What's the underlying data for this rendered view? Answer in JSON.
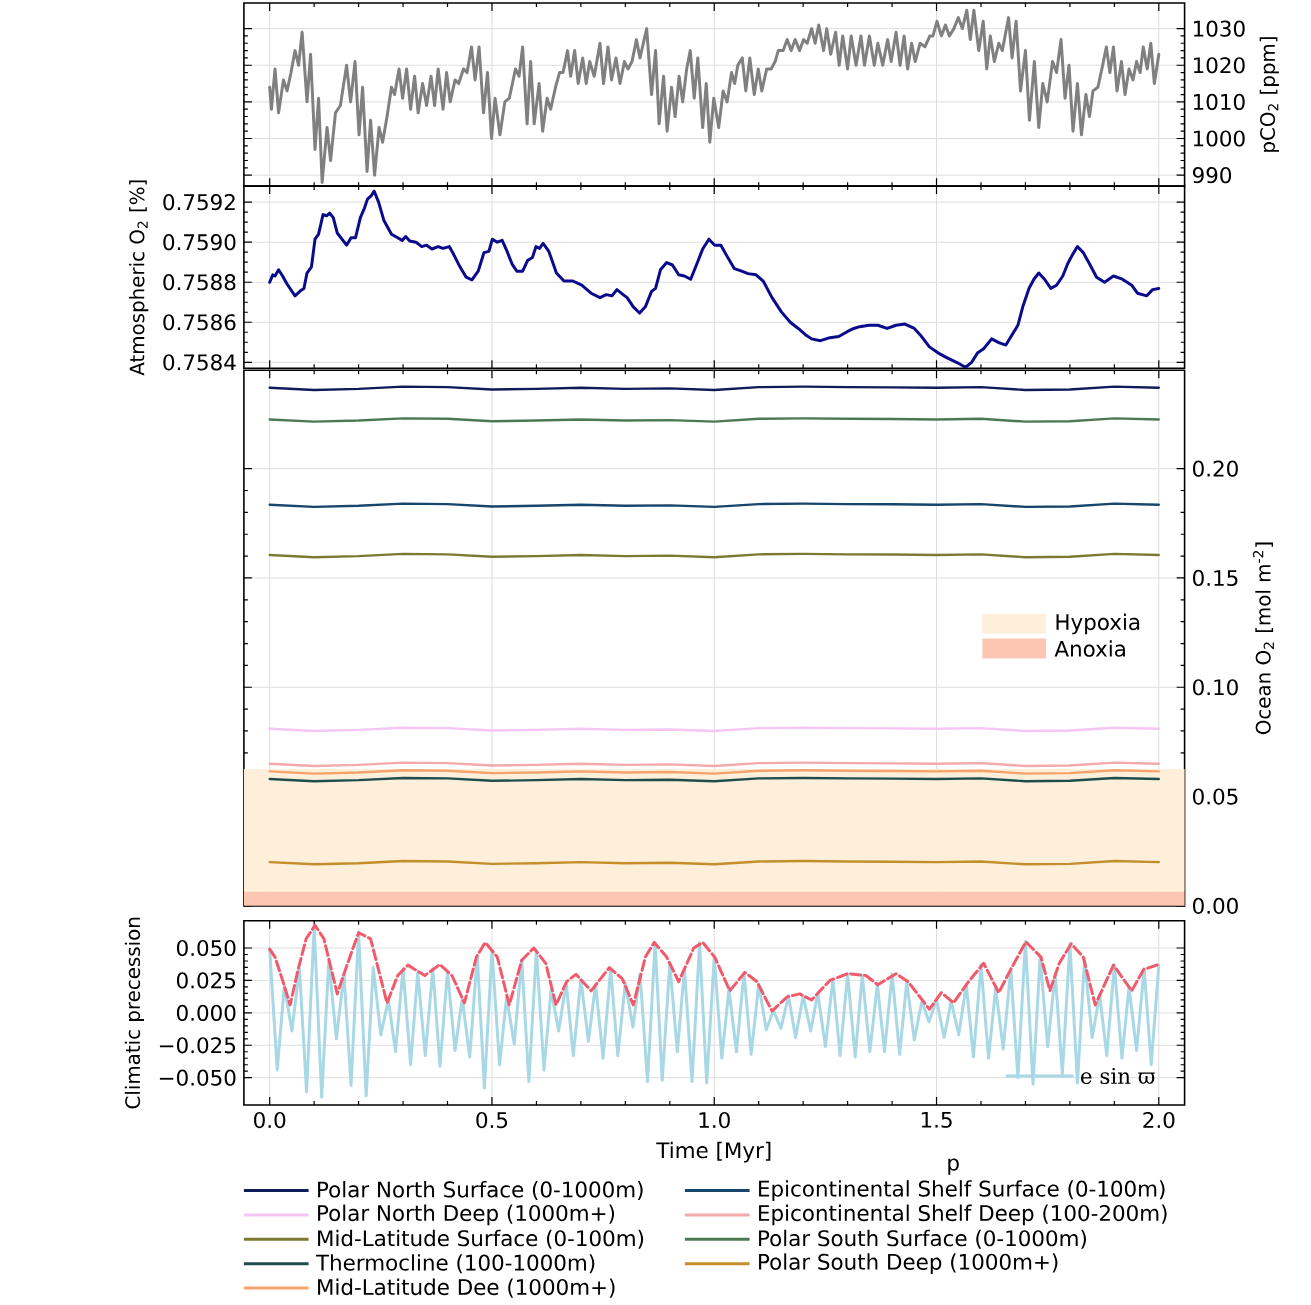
{
  "chart_data": [
    {
      "type": "line",
      "ylabel": "pCO$_{2}$ [ppm]",
      "xlim": [
        -0.058,
        2.058
      ],
      "ylim": [
        987,
        1037
      ],
      "grid": true,
      "tick_labels": "y",
      "xticks": [
        {
          "value": 0,
          "label": null
        },
        {
          "value": 0.5,
          "label": null
        },
        {
          "value": 1,
          "label": null
        },
        {
          "value": 1.5,
          "label": null
        },
        {
          "value": 2,
          "label": null
        }
      ],
      "yticks": [
        990,
        1000,
        1010,
        1020,
        1030
      ],
      "color": "#808080",
      "x": [
        0,
        0.004,
        0.012,
        0.02,
        0.031,
        0.039,
        0.048,
        0.057,
        0.065,
        0.073,
        0.084,
        0.092,
        0.102,
        0.11,
        0.118,
        0.129,
        0.137,
        0.148,
        0.159,
        0.173,
        0.182,
        0.192,
        0.201,
        0.209,
        0.219,
        0.227,
        0.236,
        0.246,
        0.254,
        0.264,
        0.274,
        0.281,
        0.291,
        0.299,
        0.308,
        0.317,
        0.326,
        0.334,
        0.344,
        0.353,
        0.363,
        0.371,
        0.379,
        0.39,
        0.398,
        0.406,
        0.417,
        0.425,
        0.436,
        0.444,
        0.454,
        0.462,
        0.471,
        0.481,
        0.49,
        0.499,
        0.507,
        0.518,
        0.529,
        0.539,
        0.553,
        0.561,
        0.569,
        0.579,
        0.587,
        0.595,
        0.606,
        0.614,
        0.624,
        0.632,
        0.643,
        0.652,
        0.66,
        0.67,
        0.677,
        0.686,
        0.694,
        0.704,
        0.712,
        0.72,
        0.73,
        0.743,
        0.751,
        0.761,
        0.769,
        0.779,
        0.788,
        0.798,
        0.806,
        0.815,
        0.825,
        0.833,
        0.848,
        0.859,
        0.868,
        0.876,
        0.886,
        0.894,
        0.904,
        0.912,
        0.921,
        0.929,
        0.938,
        0.946,
        0.955,
        0.963,
        0.974,
        0.982,
        0.99,
        0.999,
        1.01,
        1.02,
        1.029,
        1.039,
        1.046,
        1.053,
        1.063,
        1.071,
        1.08,
        1.09,
        1.099,
        1.107,
        1.118,
        1.128,
        1.137,
        1.144,
        1.155,
        1.164,
        1.173,
        1.182,
        1.192,
        1.201,
        1.209,
        1.219,
        1.227,
        1.235,
        1.246,
        1.253,
        1.262,
        1.273,
        1.281,
        1.289,
        1.3,
        1.308,
        1.319,
        1.33,
        1.338,
        1.349,
        1.36,
        1.368,
        1.379,
        1.39,
        1.398,
        1.409,
        1.418,
        1.427,
        1.435,
        1.444,
        1.452,
        1.463,
        1.474,
        1.485,
        1.492,
        1.501,
        1.511,
        1.52,
        1.529,
        1.539,
        1.549,
        1.558,
        1.568,
        1.576,
        1.584,
        1.595,
        1.605,
        1.613,
        1.621,
        1.63,
        1.64,
        1.648,
        1.662,
        1.67,
        1.679,
        1.689,
        1.7,
        1.709,
        1.72,
        1.73,
        1.739,
        1.749,
        1.761,
        1.77,
        1.78,
        1.789,
        1.798,
        1.807,
        1.817,
        1.826,
        1.836,
        1.844,
        1.852,
        1.863,
        1.872,
        1.882,
        1.89,
        1.898,
        1.906,
        1.916,
        1.924,
        1.933,
        1.942,
        1.95,
        1.958,
        1.965,
        1.974,
        1.982,
        1.99,
        2.0
      ],
      "values": [
        1014,
        1008,
        1019,
        1007,
        1016,
        1013,
        1018,
        1024,
        1020,
        1029,
        1010,
        1023,
        997,
        1011,
        988,
        1003,
        994,
        1007,
        1009,
        1020,
        1010,
        1021,
        1001,
        1014,
        991,
        1005,
        990,
        1003,
        999,
        1006,
        1014,
        1012,
        1019,
        1011,
        1019,
        1008,
        1017,
        1007,
        1015,
        1009,
        1017,
        1009,
        1019,
        1008,
        1018,
        1010,
        1016,
        1015,
        1019,
        1018,
        1025,
        1016,
        1025,
        1007,
        1018,
        1000,
        1011,
        1001,
        1010,
        1011,
        1019,
        1017,
        1025,
        1004,
        1021,
        1004,
        1015,
        1002,
        1011,
        1008,
        1014,
        1018,
        1018,
        1024,
        1017,
        1024,
        1015,
        1022,
        1015,
        1021,
        1017,
        1026,
        1015,
        1025,
        1016,
        1022,
        1015,
        1021,
        1019,
        1021,
        1027,
        1022,
        1030,
        1012,
        1024,
        1004,
        1017,
        1002,
        1014,
        1006,
        1017,
        1010,
        1019,
        1024,
        1011,
        1022,
        1003,
        1015,
        999,
        1011,
        1003,
        1013,
        1010,
        1018,
        1015,
        1020,
        1022,
        1013,
        1022,
        1012,
        1019,
        1013,
        1019,
        1019,
        1021,
        1024,
        1024,
        1027,
        1024,
        1027,
        1024,
        1027,
        1026,
        1030,
        1026,
        1031,
        1024,
        1030,
        1023,
        1029,
        1020,
        1028,
        1019,
        1028,
        1020,
        1028,
        1020,
        1028,
        1020,
        1026,
        1020,
        1027,
        1021,
        1029,
        1020,
        1028,
        1019,
        1026,
        1021,
        1026,
        1025,
        1028,
        1028,
        1032,
        1028,
        1031,
        1028,
        1030,
        1033,
        1030,
        1035,
        1027,
        1035,
        1024,
        1032,
        1019,
        1028,
        1021,
        1026,
        1024,
        1033,
        1022,
        1032,
        1013,
        1024,
        1005,
        1021,
        1003,
        1015,
        1010,
        1021,
        1018,
        1027,
        1011,
        1020,
        1002,
        1015,
        1001,
        1012,
        1006,
        1013,
        1014,
        1019,
        1025,
        1018,
        1025,
        1013,
        1021,
        1012,
        1019,
        1016,
        1021,
        1018,
        1025,
        1019,
        1026,
        1015,
        1023
      ]
    },
    {
      "type": "line",
      "ylabel": "Atmospheric O$_{2}$ [%]",
      "xlim": [
        -0.058,
        2.058
      ],
      "ylim": [
        0.75837,
        0.75928
      ],
      "grid": true,
      "tick_labels": "y",
      "xticks": [
        {
          "value": 0,
          "label": null
        },
        {
          "value": 0.5,
          "label": null
        },
        {
          "value": 1,
          "label": null
        },
        {
          "value": 1.5,
          "label": null
        },
        {
          "value": 2,
          "label": null
        }
      ],
      "yticks": [
        0.7584,
        0.7586,
        0.7588,
        {
          "value": 0.759,
          "label": "0.7590"
        },
        0.7592
      ],
      "color": "#0a0a8c",
      "x": [
        0,
        0.007,
        0.012,
        0.02,
        0.029,
        0.039,
        0.057,
        0.071,
        0.077,
        0.084,
        0.094,
        0.102,
        0.11,
        0.12,
        0.128,
        0.135,
        0.143,
        0.152,
        0.173,
        0.183,
        0.193,
        0.204,
        0.213,
        0.22,
        0.228,
        0.235,
        0.245,
        0.257,
        0.274,
        0.288,
        0.298,
        0.306,
        0.315,
        0.329,
        0.342,
        0.353,
        0.365,
        0.379,
        0.39,
        0.404,
        0.414,
        0.428,
        0.442,
        0.455,
        0.469,
        0.482,
        0.493,
        0.501,
        0.512,
        0.523,
        0.534,
        0.545,
        0.556,
        0.569,
        0.58,
        0.591,
        0.599,
        0.607,
        0.615,
        0.628,
        0.645,
        0.662,
        0.682,
        0.702,
        0.723,
        0.743,
        0.757,
        0.77,
        0.781,
        0.795,
        0.804,
        0.818,
        0.832,
        0.845,
        0.859,
        0.868,
        0.879,
        0.893,
        0.906,
        0.92,
        0.933,
        0.947,
        0.961,
        0.974,
        0.988,
        1.001,
        1.015,
        1.029,
        1.045,
        1.062,
        1.076,
        1.094,
        1.11,
        1.13,
        1.151,
        1.171,
        1.189,
        1.205,
        1.219,
        1.239,
        1.26,
        1.28,
        1.3,
        1.314,
        1.327,
        1.348,
        1.368,
        1.389,
        1.409,
        1.429,
        1.45,
        1.463,
        1.484,
        1.504,
        1.524,
        1.545,
        1.565,
        1.579,
        1.592,
        1.606,
        1.624,
        1.64,
        1.656,
        1.67,
        1.683,
        1.694,
        1.708,
        1.719,
        1.73,
        1.743,
        1.757,
        1.77,
        1.784,
        1.795,
        1.806,
        1.817,
        1.83,
        1.844,
        1.86,
        1.878,
        1.898,
        1.918,
        1.939,
        1.952,
        1.973,
        1.986,
        2.0
      ],
      "values": [
        0.7588,
        0.758837,
        0.758831,
        0.758862,
        0.758831,
        0.758791,
        0.758732,
        0.75876,
        0.758769,
        0.758846,
        0.758877,
        0.759015,
        0.75904,
        0.759138,
        0.759132,
        0.759145,
        0.759123,
        0.759046,
        0.758985,
        0.759022,
        0.759022,
        0.759123,
        0.759169,
        0.759215,
        0.759231,
        0.759255,
        0.7592,
        0.759108,
        0.75904,
        0.759022,
        0.759009,
        0.759028,
        0.759006,
        0.759,
        0.758978,
        0.758985,
        0.758966,
        0.758978,
        0.758969,
        0.758978,
        0.758938,
        0.758877,
        0.758825,
        0.758812,
        0.758855,
        0.758948,
        0.758954,
        0.759015,
        0.759,
        0.759009,
        0.758954,
        0.758892,
        0.758855,
        0.758855,
        0.758908,
        0.758923,
        0.758978,
        0.758969,
        0.758994,
        0.758954,
        0.758846,
        0.758806,
        0.758806,
        0.758785,
        0.758745,
        0.758723,
        0.758738,
        0.758732,
        0.758763,
        0.758738,
        0.758723,
        0.758677,
        0.758646,
        0.758677,
        0.758754,
        0.758769,
        0.758862,
        0.758898,
        0.758886,
        0.758837,
        0.758831,
        0.758815,
        0.758892,
        0.758966,
        0.759015,
        0.758985,
        0.758985,
        0.758929,
        0.758868,
        0.758855,
        0.758843,
        0.758837,
        0.758806,
        0.758723,
        0.758652,
        0.7586,
        0.758569,
        0.758538,
        0.758517,
        0.758508,
        0.758523,
        0.758529,
        0.758554,
        0.758569,
        0.758578,
        0.758585,
        0.758585,
        0.758569,
        0.758585,
        0.758591,
        0.758569,
        0.758538,
        0.758477,
        0.758446,
        0.758422,
        0.7584,
        0.758375,
        0.7584,
        0.758446,
        0.758468,
        0.758517,
        0.758498,
        0.758486,
        0.758538,
        0.758585,
        0.758677,
        0.758769,
        0.758815,
        0.758846,
        0.758815,
        0.758769,
        0.758785,
        0.758831,
        0.758892,
        0.758938,
        0.758978,
        0.758948,
        0.758892,
        0.758825,
        0.7588,
        0.758831,
        0.758815,
        0.758785,
        0.758745,
        0.758732,
        0.758763,
        0.758769
      ]
    },
    {
      "type": "line",
      "ylabel": "Ocean O$_{2}$ [mol m$^{-2}$]",
      "xlim": [
        -0.058,
        2.058
      ],
      "ylim": [
        0,
        0.245
      ],
      "grid": true,
      "tick_labels": "y",
      "legend": "bottom",
      "xticks": [
        {
          "value": 0,
          "label": null
        },
        {
          "value": 0.5,
          "label": null
        },
        {
          "value": 1,
          "label": null
        },
        {
          "value": 1.5,
          "label": null
        },
        {
          "value": 2,
          "label": null
        }
      ],
      "yticks": [
        {
          "value": 0,
          "label": "0.00"
        },
        {
          "value": 0.05,
          "label": "0.05"
        },
        {
          "value": 0.1,
          "label": "0.10"
        },
        {
          "value": 0.15,
          "label": "0.15"
        },
        {
          "value": 0.2,
          "label": "0.20"
        }
      ],
      "bands": [
        {
          "axis": "y",
          "from": 0.0064,
          "to": 0.0626,
          "label": "Hypoxia",
          "color": "#fdefd9"
        },
        {
          "axis": "y",
          "from": 0,
          "to": 0.0064,
          "label": "Anoxia",
          "color": "#fcc6b2"
        }
      ],
      "x": [
        0,
        0.1,
        0.2,
        0.3,
        0.4,
        0.5,
        0.6,
        0.7,
        0.8,
        0.9,
        1.0,
        1.1,
        1.2,
        1.3,
        1.4,
        1.5,
        1.6,
        1.7,
        1.8,
        1.9,
        2.0
      ],
      "series": [
        {
          "name": "Polar North Surface (0-1000m)",
          "color": "#0f1c5a",
          "values": [
            0.237,
            0.236,
            0.2365,
            0.2375,
            0.2373,
            0.2362,
            0.2365,
            0.237,
            0.2365,
            0.2367,
            0.236,
            0.2373,
            0.2375,
            0.2373,
            0.2372,
            0.237,
            0.2373,
            0.236,
            0.2362,
            0.2375,
            0.237
          ]
        },
        {
          "name": "Polar North Deep (1000m+)",
          "color": "#f5c6f5",
          "values": [
            0.081,
            0.08,
            0.0805,
            0.0815,
            0.0813,
            0.0802,
            0.0805,
            0.081,
            0.0805,
            0.0807,
            0.08,
            0.0813,
            0.0815,
            0.0813,
            0.0812,
            0.081,
            0.0813,
            0.08,
            0.0802,
            0.0815,
            0.081
          ]
        },
        {
          "name": "Mid-Latitude Surface (0-100m)",
          "color": "#7c7a30",
          "values": [
            0.1605,
            0.1595,
            0.16,
            0.161,
            0.1608,
            0.1597,
            0.16,
            0.1605,
            0.16,
            0.1602,
            0.1595,
            0.1608,
            0.161,
            0.1608,
            0.1607,
            0.1605,
            0.1608,
            0.1595,
            0.1597,
            0.161,
            0.1605
          ]
        },
        {
          "name": "Thermocline (100-1000m)",
          "color": "#1f4d4d",
          "values": [
            0.058,
            0.057,
            0.0575,
            0.0585,
            0.0583,
            0.0572,
            0.0575,
            0.058,
            0.0575,
            0.0577,
            0.057,
            0.0583,
            0.0585,
            0.0583,
            0.0582,
            0.058,
            0.0583,
            0.057,
            0.0572,
            0.0585,
            0.058
          ]
        },
        {
          "name": "Mid-Latitude Dee (1000m+)",
          "color": "#f5a36a",
          "values": [
            0.0615,
            0.0605,
            0.061,
            0.062,
            0.0618,
            0.0607,
            0.061,
            0.0615,
            0.061,
            0.0612,
            0.0605,
            0.0618,
            0.062,
            0.0618,
            0.0617,
            0.0615,
            0.0618,
            0.0605,
            0.0607,
            0.062,
            0.0615
          ]
        },
        {
          "name": "Epicontinental Shelf Surface (0-100m)",
          "color": "#17456b",
          "values": [
            0.1835,
            0.1825,
            0.183,
            0.184,
            0.1838,
            0.1827,
            0.183,
            0.1835,
            0.183,
            0.1832,
            0.1825,
            0.1838,
            0.184,
            0.1838,
            0.1837,
            0.1835,
            0.1838,
            0.1825,
            0.1827,
            0.184,
            0.1835
          ]
        },
        {
          "name": "Epicontinental Shelf Deep (100-200m)",
          "color": "#f4aaaa",
          "values": [
            0.065,
            0.064,
            0.0645,
            0.0655,
            0.0653,
            0.0642,
            0.0645,
            0.065,
            0.0645,
            0.0647,
            0.064,
            0.0653,
            0.0655,
            0.0653,
            0.0652,
            0.065,
            0.0653,
            0.064,
            0.0642,
            0.0655,
            0.065
          ]
        },
        {
          "name": "Polar South Surface (0-1000m)",
          "color": "#4b7a52",
          "values": [
            0.2225,
            0.2215,
            0.222,
            0.223,
            0.2228,
            0.2217,
            0.222,
            0.2225,
            0.222,
            0.2222,
            0.2215,
            0.2228,
            0.223,
            0.2228,
            0.2227,
            0.2225,
            0.2228,
            0.2215,
            0.2217,
            0.223,
            0.2225
          ]
        },
        {
          "name": "Polar South Deep (1000m+)",
          "color": "#c48f2a",
          "values": [
            0.02,
            0.019,
            0.0195,
            0.0205,
            0.0203,
            0.0192,
            0.0195,
            0.02,
            0.0195,
            0.0197,
            0.019,
            0.0203,
            0.0205,
            0.0203,
            0.0202,
            0.02,
            0.0203,
            0.019,
            0.0192,
            0.0205,
            0.02
          ]
        }
      ]
    },
    {
      "type": "line",
      "xlabel": "Time [Myr]",
      "ylabel": "Climatic precession",
      "xlim": [
        -0.058,
        2.058
      ],
      "ylim": [
        -0.071,
        0.071
      ],
      "grid": true,
      "legend": "bottom right",
      "annotations": [
        "p"
      ],
      "xticks": [
        {
          "value": 0,
          "label": "0.0"
        },
        {
          "value": 0.5,
          "label": "0.5"
        },
        {
          "value": 1,
          "label": "1.0"
        },
        {
          "value": 1.5,
          "label": "1.5"
        },
        {
          "value": 2,
          "label": "2.0"
        }
      ],
      "yticks": [
        {
          "value": -0.05,
          "label": "−0.050"
        },
        {
          "value": -0.025,
          "label": "−0.025"
        },
        {
          "value": 0,
          "label": "0.000"
        },
        {
          "value": 0.025,
          "label": "0.025"
        },
        {
          "value": 0.05,
          "label": "0.050"
        }
      ],
      "x": [
        0,
        0.017,
        0.033,
        0.05,
        0.067,
        0.083,
        0.1,
        0.117,
        0.133,
        0.15,
        0.167,
        0.183,
        0.2,
        0.217,
        0.233,
        0.25,
        0.267,
        0.283,
        0.3,
        0.317,
        0.333,
        0.35,
        0.367,
        0.383,
        0.4,
        0.417,
        0.433,
        0.45,
        0.467,
        0.483,
        0.5,
        0.517,
        0.533,
        0.55,
        0.567,
        0.583,
        0.6,
        0.617,
        0.633,
        0.65,
        0.667,
        0.683,
        0.7,
        0.717,
        0.733,
        0.75,
        0.767,
        0.783,
        0.8,
        0.817,
        0.833,
        0.85,
        0.867,
        0.883,
        0.9,
        0.917,
        0.933,
        0.95,
        0.967,
        0.983,
        1.0,
        1.017,
        1.033,
        1.05,
        1.067,
        1.083,
        1.1,
        1.117,
        1.133,
        1.15,
        1.167,
        1.183,
        1.2,
        1.217,
        1.233,
        1.25,
        1.267,
        1.283,
        1.3,
        1.317,
        1.333,
        1.35,
        1.367,
        1.383,
        1.4,
        1.417,
        1.433,
        1.45,
        1.467,
        1.483,
        1.5,
        1.517,
        1.533,
        1.55,
        1.567,
        1.583,
        1.6,
        1.617,
        1.633,
        1.65,
        1.667,
        1.683,
        1.7,
        1.717,
        1.733,
        1.75,
        1.767,
        1.783,
        1.8,
        1.817,
        1.833,
        1.85,
        1.867,
        1.883,
        1.9,
        1.917,
        1.933,
        1.95,
        1.967,
        1.983,
        2.0
      ],
      "series": [
        {
          "name": "e sin ϖ",
          "color": "#a8d8e6",
          "values": [
            0.049,
            -0.044,
            0.021,
            -0.014,
            0.034,
            -0.061,
            0.067,
            -0.065,
            0.04,
            -0.02,
            0.03,
            -0.056,
            0.062,
            -0.064,
            0.035,
            -0.017,
            0.01,
            -0.03,
            0.034,
            -0.04,
            0.031,
            -0.033,
            0.034,
            -0.041,
            0.032,
            -0.029,
            0.011,
            -0.034,
            0.044,
            -0.058,
            0.048,
            -0.04,
            0.012,
            -0.024,
            0.041,
            -0.053,
            0.048,
            -0.044,
            0.018,
            -0.014,
            0.023,
            -0.033,
            0.026,
            -0.022,
            0.022,
            -0.035,
            0.034,
            -0.033,
            0.023,
            -0.011,
            0.03,
            -0.053,
            0.054,
            -0.052,
            0.038,
            -0.03,
            0.034,
            -0.053,
            0.054,
            -0.054,
            0.043,
            -0.035,
            0.018,
            -0.03,
            0.031,
            -0.032,
            0.022,
            -0.013,
            0.002,
            -0.012,
            0.013,
            -0.019,
            0.013,
            -0.014,
            0.015,
            -0.026,
            0.026,
            -0.033,
            0.03,
            -0.034,
            0.029,
            -0.03,
            0.022,
            -0.03,
            0.03,
            -0.032,
            0.024,
            -0.021,
            0.009,
            -0.007,
            0.01,
            -0.019,
            0.009,
            -0.017,
            0.022,
            -0.034,
            0.037,
            -0.035,
            0.019,
            -0.028,
            0.034,
            -0.05,
            0.055,
            -0.055,
            0.043,
            -0.026,
            0.03,
            -0.047,
            0.053,
            -0.054,
            0.042,
            -0.019,
            0.014,
            -0.033,
            0.037,
            -0.035,
            0.02,
            -0.029,
            0.034,
            -0.04,
            0.037
          ]
        },
        {
          "color": "#f05a6a",
          "line_style": "dashed",
          "x": [
            0,
            0.012,
            0.03,
            0.046,
            0.064,
            0.082,
            0.102,
            0.122,
            0.152,
            0.173,
            0.2,
            0.227,
            0.264,
            0.288,
            0.311,
            0.349,
            0.383,
            0.41,
            0.438,
            0.465,
            0.485,
            0.512,
            0.539,
            0.567,
            0.594,
            0.621,
            0.644,
            0.668,
            0.689,
            0.723,
            0.764,
            0.793,
            0.818,
            0.845,
            0.865,
            0.893,
            0.92,
            0.954,
            0.974,
            1.001,
            1.035,
            1.069,
            1.096,
            1.13,
            1.164,
            1.192,
            1.219,
            1.26,
            1.3,
            1.341,
            1.368,
            1.409,
            1.436,
            1.484,
            1.511,
            1.538,
            1.572,
            1.606,
            1.64,
            1.667,
            1.701,
            1.735,
            1.755,
            1.776,
            1.803,
            1.83,
            1.857,
            1.898,
            1.939,
            1.966,
            2.0
          ],
          "values": [
            0.0491,
            0.043,
            0.0241,
            0.0061,
            0.0335,
            0.0571,
            0.0675,
            0.0571,
            0.0146,
            0.0359,
            0.0618,
            0.0571,
            0.0076,
            0.0288,
            0.0368,
            0.0288,
            0.0373,
            0.0288,
            0.0076,
            0.043,
            0.0543,
            0.043,
            0.0061,
            0.0406,
            0.05,
            0.0382,
            0.0061,
            0.0241,
            0.0297,
            0.017,
            0.0349,
            0.0264,
            0.0061,
            0.043,
            0.0543,
            0.043,
            0.0241,
            0.05,
            0.0543,
            0.043,
            0.017,
            0.0312,
            0.0241,
            0.0014,
            0.0123,
            0.0146,
            0.0099,
            0.025,
            0.0302,
            0.0288,
            0.0217,
            0.0302,
            0.0241,
            0.0028,
            0.0156,
            0.0076,
            0.0241,
            0.0382,
            0.0156,
            0.0335,
            0.0548,
            0.043,
            0.017,
            0.0382,
            0.0533,
            0.043,
            0.0061,
            0.0368,
            0.017,
            0.0335,
            0.0373
          ]
        }
      ]
    }
  ]
}
